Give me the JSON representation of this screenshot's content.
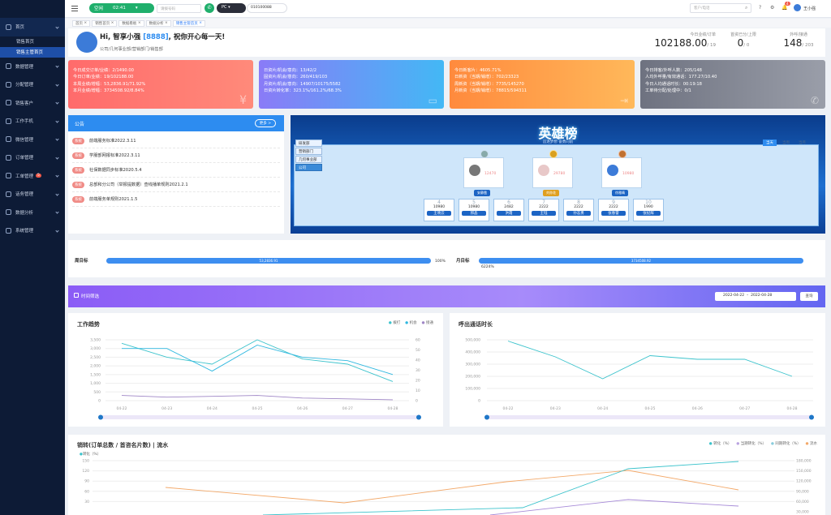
{
  "sidebar": {
    "items": [
      "首页",
      "销售首页",
      "销售主管首页",
      "数据管理",
      "分配管理",
      "销售客户",
      "工作手机",
      "微信管理",
      "订单管理",
      "工单管理",
      "话务管理",
      "数据分析",
      "系统管理"
    ],
    "badge": "5"
  },
  "topbar": {
    "status": "空闲",
    "timer": "02:41",
    "phone_placeholder": "请拨号码",
    "device": "PC",
    "ext": "010100088",
    "search_placeholder": "客户/电话",
    "user": "王小强",
    "notify_count": "4"
  },
  "tabs": [
    "首页",
    "销售首页",
    "数据看板",
    "数据分析",
    "销售主管首页"
  ],
  "greeting": {
    "hi": "Hi, 智享小强",
    "code": "[8888]",
    "tail": ", 祝你开心每一天!",
    "dept": "公司/几何事业部/营销部门/销售部"
  },
  "kpis": [
    {
      "label": "今日业绩/订单",
      "value": "102188.00",
      "sub": "/ 19"
    },
    {
      "label": "首资已分/上限",
      "value": "0",
      "sub": "/ 0"
    },
    {
      "label": "外呼/接通",
      "value": "148",
      "sub": "/ 203"
    }
  ],
  "stats": [
    {
      "lines": [
        "今日成交订单/业绩：2/1490.00",
        "今日订单/业绩：19/102188.00",
        "本周业绩/增幅：53,2836.91/71.92%",
        "本月业绩/增幅：3734508.92/8.84%"
      ],
      "color": "#ff6a6a"
    },
    {
      "lines": [
        "日资片/机会/意向：13/42/2",
        "固资片/机会/意向：260/419/103",
        "月资片/机会/意向：14907/10175/5582",
        "日资片转化率：323.1%/161.2%/68.3%"
      ],
      "color": "#6f8bff"
    },
    {
      "lines": [
        "今日新客片：4605.71%",
        "日新资（当期/销增）：702/23323",
        "周新资（当期/销增）：7735/145270",
        "月新资（当期/销增）：78815/594311"
      ],
      "color": "#ff9e46"
    },
    {
      "lines": [
        "今日排客/外呼人数：205/148",
        "人均外呼量/有效通话：177.27/10.40",
        "今日人均通话时长：00:19:18",
        "工单待分配/处理中：0/1"
      ],
      "color": "#8a8e9c"
    }
  ],
  "notice": {
    "title": "公告",
    "more": "更多 >",
    "items": [
      {
        "tag": "系统",
        "text": "前端服务标准2022.3.11"
      },
      {
        "tag": "系统",
        "text": "学服部网报标准2022.3.11"
      },
      {
        "tag": "系统",
        "text": "社保数据同步标准2020.5.4"
      },
      {
        "tag": "系统",
        "text": "总部和分公司（举报提数据）查线播单规则2021.2.1"
      },
      {
        "tag": "系统",
        "text": "前端服务单规则2021.1.5"
      }
    ]
  },
  "hero": {
    "title": "英雄榜",
    "subtitle": "追逐梦想 奋勇向前",
    "tabs": [
      "研发部",
      "营销部门",
      "几何事业部",
      "公司"
    ],
    "periods": [
      "当天",
      "当周",
      "当月"
    ],
    "top3": [
      {
        "score": "12470",
        "name": "安静霞"
      },
      {
        "score": "29780",
        "name": "刘亦花"
      },
      {
        "score": "10980",
        "name": "徐雅晴"
      }
    ],
    "ranks": [
      {
        "n": "4",
        "score": "10980",
        "name": "王晓云"
      },
      {
        "n": "5",
        "score": "10980",
        "name": "郭晶"
      },
      {
        "n": "6",
        "score": "2482",
        "name": "洪霞"
      },
      {
        "n": "7",
        "score": "2222",
        "name": "王钰"
      },
      {
        "n": "8",
        "score": "2222",
        "name": "孙志勇"
      },
      {
        "n": "9",
        "score": "2222",
        "name": "张春雷"
      },
      {
        "n": "10",
        "score": "1990",
        "name": "张纪辉"
      }
    ]
  },
  "goals": {
    "week_label": "周目标",
    "week_value": "53,2836.91",
    "week_pct": "100%",
    "week_fill": 1.0,
    "month_label": "月目标",
    "month_value": "3734508.92",
    "month_pct": "6224%",
    "month_fill": 1.0
  },
  "timefilter": {
    "label": "时间筛选",
    "from": "2022-04-22",
    "to": "2022-04-28",
    "query": "查询"
  },
  "chart_data": [
    {
      "type": "line",
      "title": "工作趋势",
      "categories": [
        "04-22",
        "04-23",
        "04-24",
        "04-25",
        "04-26",
        "04-27",
        "04-28"
      ],
      "legend": [
        "拨打",
        "机会",
        "接通"
      ],
      "ylim_left": [
        0,
        3500
      ],
      "yticks_left": [
        "3,500",
        "3,000",
        "2,500",
        "2,000",
        "1,500",
        "1,000",
        "500",
        "0"
      ],
      "ylim_right": [
        0,
        60
      ],
      "yticks_right": [
        "60",
        "50",
        "40",
        "30",
        "20",
        "10",
        "0"
      ],
      "series": [
        {
          "name": "拨打",
          "values": [
            3300,
            2500,
            2100,
            3500,
            2400,
            2100,
            1100
          ]
        },
        {
          "name": "机会",
          "values": [
            3000,
            3000,
            1700,
            3200,
            2500,
            2300,
            1500
          ]
        },
        {
          "name": "接通",
          "values": [
            300,
            200,
            250,
            300,
            150,
            100,
            50
          ]
        }
      ]
    },
    {
      "type": "line",
      "title": "呼出通话时长",
      "categories": [
        "04-22",
        "04-23",
        "04-24",
        "04-25",
        "04-26",
        "04-27",
        "04-28"
      ],
      "ylim": [
        0,
        500000
      ],
      "yticks": [
        "500,000",
        "400,000",
        "300,000",
        "200,000",
        "100,000",
        "0"
      ],
      "series": [
        {
          "values": [
            490000,
            360000,
            180000,
            370000,
            340000,
            340000,
            200000
          ]
        }
      ]
    },
    {
      "type": "line",
      "title": "销转(订单总数 / 首咨名片数) | 流水",
      "legend": [
        "转化（%）",
        "当期转化（%）",
        "同期转化（%）",
        "流水"
      ],
      "ylabel": "转化（%）",
      "yticks_left": [
        "150",
        "120",
        "90",
        "60",
        "30"
      ],
      "yticks_right": [
        "180,000",
        "150,000",
        "120,000",
        "90,000",
        "60,000",
        "30,000"
      ]
    }
  ]
}
